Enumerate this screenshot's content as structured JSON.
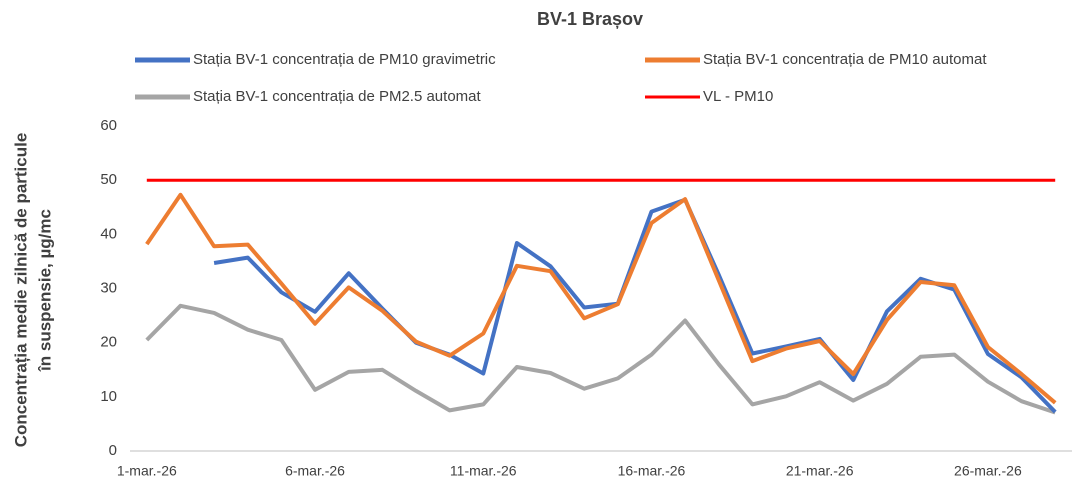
{
  "chart_data": {
    "type": "line",
    "title": "BV-1 Brașov",
    "ylabel": [
      "Concentrația medie zilnică de particule",
      "în suspensie, µg/mc"
    ],
    "categories": [
      "1-mar.-26",
      null,
      null,
      null,
      null,
      "6-mar.-26",
      null,
      null,
      null,
      null,
      "11-mar.-26",
      null,
      null,
      null,
      null,
      "16-mar.-26",
      null,
      null,
      null,
      null,
      "21-mar.-26",
      null,
      null,
      null,
      null,
      "26-mar.-26",
      null,
      null
    ],
    "series": [
      {
        "name": "Stația BV-1 concentrația de PM10 gravimetric",
        "color": "#4472c4",
        "values": [
          null,
          null,
          34.7,
          35.7,
          29.3,
          25.7,
          32.8,
          26.3,
          20,
          17.8,
          14.3,
          38.4,
          34.1,
          26.5,
          27.2,
          44.2,
          46.4,
          32.5,
          18,
          19.3,
          20.7,
          13.1,
          25.8,
          31.8,
          29.8,
          17.9,
          13.6,
          7.2
        ]
      },
      {
        "name": "Stația BV-1 concentrația de PM10 automat",
        "color": "#ed7d31",
        "values": [
          38.2,
          47.3,
          37.8,
          38.1,
          30.9,
          23.5,
          30.2,
          25.9,
          20.2,
          17.6,
          21.7,
          34.2,
          33.2,
          24.5,
          27.1,
          42.1,
          46.5,
          31.5,
          16.6,
          18.9,
          20.3,
          14.2,
          24.2,
          31.2,
          30.6,
          19.2,
          14.2,
          8.9
        ]
      },
      {
        "name": "Stația BV-1 concentrația de PM2.5 automat",
        "color": "#a5a5a5",
        "values": [
          20.5,
          26.8,
          25.5,
          22.4,
          20.5,
          11.3,
          14.6,
          15.0,
          11.1,
          7.5,
          8.6,
          15.5,
          14.4,
          11.5,
          13.4,
          17.8,
          24.1,
          16.0,
          8.6,
          10.1,
          12.7,
          9.3,
          12.4,
          17.4,
          17.8,
          12.8,
          9.2,
          7.1
        ]
      },
      {
        "name": "VL - PM10",
        "color": "#ff0000",
        "values": [
          50,
          50,
          50,
          50,
          50,
          50,
          50,
          50,
          50,
          50,
          50,
          50,
          50,
          50,
          50,
          50,
          50,
          50,
          50,
          50,
          50,
          50,
          50,
          50,
          50,
          50,
          50,
          50
        ]
      }
    ],
    "ylim": [
      0,
      60
    ],
    "yticks": [
      0,
      10,
      20,
      30,
      40,
      50,
      60
    ],
    "grid": false
  }
}
